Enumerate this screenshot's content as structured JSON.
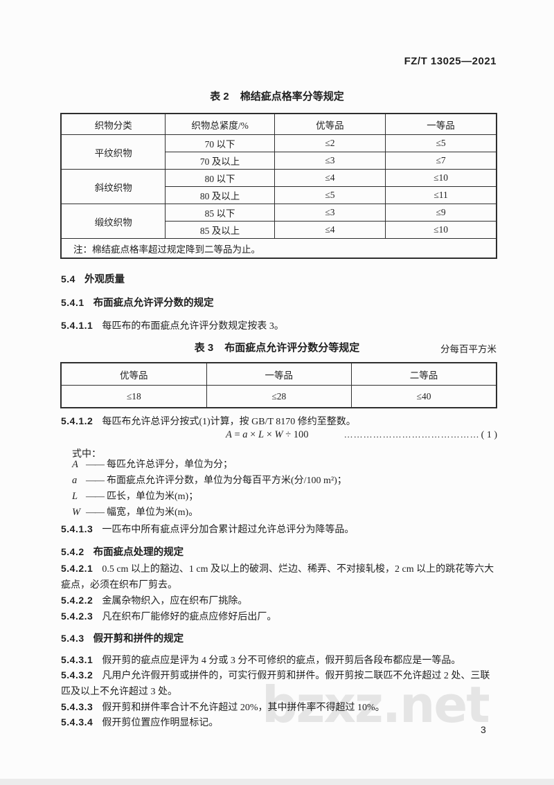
{
  "header": {
    "standard_number": "FZ/T 13025—2021"
  },
  "table2": {
    "caption_label": "表 2",
    "caption_title": "棉结疵点格率分等规定",
    "col_headers": [
      "织物分类",
      "织物总紧度/%",
      "优等品",
      "一等品"
    ],
    "groups": [
      {
        "category": "平纹织物",
        "rows": [
          {
            "density": "70 以下",
            "superior": "≤2",
            "first": "≤5"
          },
          {
            "density": "70 及以上",
            "superior": "≤3",
            "first": "≤7"
          }
        ]
      },
      {
        "category": "斜纹织物",
        "rows": [
          {
            "density": "80 以下",
            "superior": "≤4",
            "first": "≤10"
          },
          {
            "density": "80 及以上",
            "superior": "≤5",
            "first": "≤11"
          }
        ]
      },
      {
        "category": "缎纹织物",
        "rows": [
          {
            "density": "85 以下",
            "superior": "≤3",
            "first": "≤9"
          },
          {
            "density": "85 及以上",
            "superior": "≤4",
            "first": "≤10"
          }
        ]
      }
    ],
    "note": "注：棉结疵点格率超过规定降到二等品为止。"
  },
  "sections": {
    "s54": {
      "num": "5.4",
      "title": "外观质量"
    },
    "s541": {
      "num": "5.4.1",
      "title": "布面疵点允许评分数的规定"
    },
    "s5411": {
      "num": "5.4.1.1",
      "text": "每匹布的布面疵点允许评分数规定按表 3。"
    },
    "s5412": {
      "num": "5.4.1.2",
      "text": "每匹布允许总评分按式(1)计算，按 GB/T 8170 修约至整数。"
    },
    "s5413": {
      "num": "5.4.1.3",
      "text": "一匹布中所有疵点评分加合累计超过允许总评分为降等品。"
    },
    "s542": {
      "num": "5.4.2",
      "title": "布面疵点处理的规定"
    },
    "s5421": {
      "num": "5.4.2.1",
      "text": "0.5 cm 以上的豁边、1 cm 及以上的破洞、烂边、稀弄、不对接轧梭，2 cm 以上的跳花等六大疵点，必须在织布厂剪去。"
    },
    "s5422": {
      "num": "5.4.2.2",
      "text": "金属杂物织入，应在织布厂挑除。"
    },
    "s5423": {
      "num": "5.4.2.3",
      "text": "凡在织布厂能修好的疵点应修好后出厂。"
    },
    "s543": {
      "num": "5.4.3",
      "title": "假开剪和拼件的规定"
    },
    "s5431": {
      "num": "5.4.3.1",
      "text": "假开剪的疵点应是评为 4 分或 3 分不可修织的疵点，假开剪后各段布都应是一等品。"
    },
    "s5432": {
      "num": "5.4.3.2",
      "text": "凡用户允许假开剪或拼件的，可实行假开剪和拼件。假开剪按二联匹不允许超过 2 处、三联匹及以上不允许超过 3 处。"
    },
    "s5433": {
      "num": "5.4.3.3",
      "text": "假开剪和拼件率合计不允许超过 20%，其中拼件率不得超过 10%。"
    },
    "s5434": {
      "num": "5.4.3.4",
      "text": "假开剪位置应作明显标记。"
    }
  },
  "table3": {
    "caption_label": "表 3",
    "caption_title": "布面疵点允许评分数分等规定",
    "unit_note": "分每百平方米",
    "col_headers": [
      "优等品",
      "一等品",
      "二等品"
    ],
    "values": [
      "≤18",
      "≤28",
      "≤40"
    ]
  },
  "formula": {
    "tokens": [
      {
        "t": "A",
        "i": true
      },
      {
        "t": " = "
      },
      {
        "t": "a",
        "i": true
      },
      {
        "t": " × "
      },
      {
        "t": "L",
        "i": true
      },
      {
        "t": " × "
      },
      {
        "t": "W",
        "i": true
      },
      {
        "t": " ÷ 100"
      }
    ],
    "leader_dots": "……………………………………",
    "eq_number": "( 1 )",
    "intro": "式中：",
    "definitions": [
      {
        "symbol": "A",
        "dash": "——",
        "desc": "每匹允许总评分，单位为分；"
      },
      {
        "symbol": "a",
        "dash": "——",
        "desc": "布面疵点允许评分数，单位为分每百平方米(分/100 m²)；"
      },
      {
        "symbol": "L",
        "dash": "——",
        "desc": "匹长，单位为米(m)；"
      },
      {
        "symbol": "W",
        "dash": "——",
        "desc": "幅宽，单位为米(m)。"
      }
    ]
  },
  "footer": {
    "page_number": "3",
    "watermark": "bzxz.net"
  },
  "colors": {
    "text": "#1f1f1f",
    "border": "#2e2e2e",
    "watermark": "#e5e5e5",
    "paper": "#fcfcfc"
  }
}
